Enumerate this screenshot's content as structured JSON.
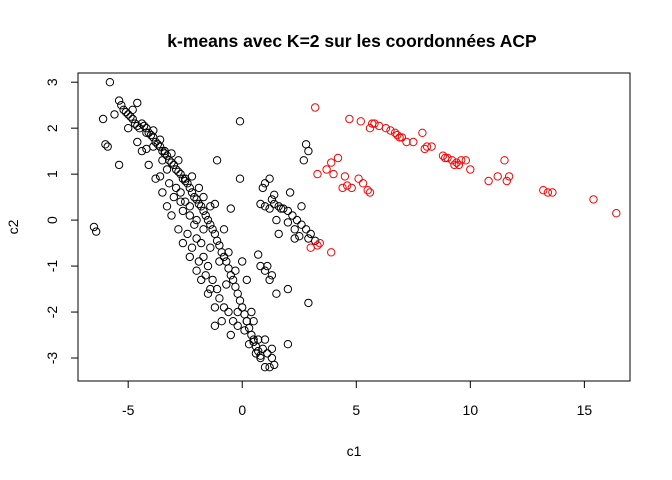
{
  "chart_data": {
    "type": "scatter",
    "title": "k-means avec K=2 sur les coordonnées ACP",
    "xlabel": "c1",
    "ylabel": "c2",
    "xlim": [
      -7.2,
      17.0
    ],
    "ylim": [
      -3.5,
      3.2
    ],
    "xticks": [
      "-5",
      "0",
      "5",
      "10",
      "15"
    ],
    "yticks": [
      "-3",
      "-2",
      "-1",
      "0",
      "1",
      "2",
      "3"
    ],
    "grid": false,
    "colors": {
      "cluster_1": "#000000",
      "cluster_2": "#ff0000"
    },
    "series": [
      {
        "color": "#000000",
        "points": [
          [
            -5.8,
            3.0
          ],
          [
            -5.4,
            2.6
          ],
          [
            -5.3,
            2.5
          ],
          [
            -5.2,
            2.4
          ],
          [
            -5.1,
            2.35
          ],
          [
            -5.0,
            2.3
          ],
          [
            -4.9,
            2.25
          ],
          [
            -4.8,
            2.2
          ],
          [
            -4.7,
            2.1
          ],
          [
            -4.6,
            2.05
          ],
          [
            -4.5,
            2.0
          ],
          [
            -4.6,
            2.55
          ],
          [
            -4.4,
            2.1
          ],
          [
            -4.3,
            2.05
          ],
          [
            -4.2,
            2.0
          ],
          [
            -4.1,
            1.9
          ],
          [
            -4.0,
            1.85
          ],
          [
            -3.9,
            1.8
          ],
          [
            -3.8,
            1.7
          ],
          [
            -3.7,
            1.65
          ],
          [
            -3.6,
            1.6
          ],
          [
            -3.5,
            1.5
          ],
          [
            -3.4,
            1.45
          ],
          [
            -3.3,
            1.4
          ],
          [
            -3.2,
            1.3
          ],
          [
            -3.1,
            1.25
          ],
          [
            -3.0,
            1.2
          ],
          [
            -2.9,
            1.1
          ],
          [
            -2.8,
            1.05
          ],
          [
            -2.7,
            1.0
          ],
          [
            -2.6,
            0.9
          ],
          [
            -2.5,
            0.85
          ],
          [
            -2.4,
            0.8
          ],
          [
            -2.3,
            0.7
          ],
          [
            -2.2,
            0.6
          ],
          [
            -2.1,
            0.5
          ],
          [
            -2.0,
            0.45
          ],
          [
            -1.9,
            0.35
          ],
          [
            -1.8,
            0.3
          ],
          [
            -1.7,
            0.2
          ],
          [
            -1.6,
            0.1
          ],
          [
            -1.5,
            0.0
          ],
          [
            -1.4,
            -0.1
          ],
          [
            -1.3,
            -0.2
          ],
          [
            -1.2,
            -0.3
          ],
          [
            -1.1,
            -0.45
          ],
          [
            -1.0,
            -0.55
          ],
          [
            -0.9,
            -0.7
          ],
          [
            -0.8,
            -0.8
          ],
          [
            -0.7,
            -0.9
          ],
          [
            -0.6,
            -1.05
          ],
          [
            -0.5,
            -1.2
          ],
          [
            -0.4,
            -1.3
          ],
          [
            -0.3,
            -1.45
          ],
          [
            -0.2,
            -1.6
          ],
          [
            -0.1,
            -1.75
          ],
          [
            0.0,
            -1.9
          ],
          [
            0.1,
            -2.05
          ],
          [
            0.2,
            -2.2
          ],
          [
            0.3,
            -2.35
          ],
          [
            0.4,
            -2.5
          ],
          [
            0.5,
            -2.6
          ],
          [
            0.6,
            -2.75
          ],
          [
            0.7,
            -2.85
          ],
          [
            0.8,
            -3.0
          ],
          [
            -4.6,
            1.7
          ],
          [
            -4.2,
            1.55
          ],
          [
            -3.9,
            1.6
          ],
          [
            -3.5,
            1.3
          ],
          [
            -3.3,
            1.1
          ],
          [
            -3.6,
            0.95
          ],
          [
            -3.2,
            0.8
          ],
          [
            -2.9,
            0.7
          ],
          [
            -3.0,
            0.5
          ],
          [
            -2.7,
            0.6
          ],
          [
            -2.5,
            0.4
          ],
          [
            -2.6,
            0.2
          ],
          [
            -2.3,
            0.1
          ],
          [
            -2.1,
            -0.1
          ],
          [
            -2.4,
            -0.3
          ],
          [
            -2.0,
            -0.4
          ],
          [
            -1.8,
            -0.5
          ],
          [
            -2.2,
            -0.6
          ],
          [
            -1.7,
            -0.8
          ],
          [
            -1.9,
            -0.9
          ],
          [
            -1.5,
            -1.0
          ],
          [
            -1.6,
            -1.2
          ],
          [
            -1.3,
            -1.3
          ],
          [
            -1.4,
            -1.5
          ],
          [
            -1.1,
            -1.5
          ],
          [
            -1.0,
            -1.7
          ],
          [
            -1.2,
            -1.9
          ],
          [
            -0.8,
            -1.9
          ],
          [
            -0.6,
            -2.0
          ],
          [
            -0.9,
            -2.2
          ],
          [
            -0.4,
            -2.2
          ],
          [
            -0.2,
            -2.3
          ],
          [
            -0.5,
            -2.5
          ],
          [
            0.1,
            -2.4
          ],
          [
            0.3,
            -2.7
          ],
          [
            -1.5,
            -1.6
          ],
          [
            -1.8,
            -1.3
          ],
          [
            -2.0,
            -1.1
          ],
          [
            -2.3,
            -0.8
          ],
          [
            -2.6,
            -0.5
          ],
          [
            -2.8,
            -0.2
          ],
          [
            -3.1,
            0.1
          ],
          [
            -3.3,
            0.3
          ],
          [
            -3.5,
            0.6
          ],
          [
            -3.8,
            0.9
          ],
          [
            -4.1,
            1.2
          ],
          [
            -4.4,
            1.5
          ],
          [
            -1.2,
            -2.3
          ],
          [
            -0.7,
            -1.4
          ],
          [
            -1.0,
            -0.9
          ],
          [
            -1.4,
            -0.6
          ],
          [
            -1.7,
            -0.2
          ],
          [
            -2.0,
            0.0
          ],
          [
            -2.3,
            0.3
          ],
          [
            -2.7,
            0.4
          ],
          [
            -6.5,
            -0.15
          ],
          [
            -6.4,
            -0.25
          ],
          [
            -5.9,
            1.6
          ],
          [
            -6.0,
            1.65
          ],
          [
            -6.1,
            2.2
          ],
          [
            -5.6,
            2.3
          ],
          [
            -5.4,
            1.2
          ],
          [
            -5.0,
            2.0
          ],
          [
            -4.8,
            2.4
          ],
          [
            -4.2,
            1.9
          ],
          [
            -3.9,
            1.95
          ],
          [
            -3.6,
            1.75
          ],
          [
            -3.4,
            1.5
          ],
          [
            -3.1,
            1.45
          ],
          [
            -2.8,
            1.3
          ],
          [
            -2.5,
            0.9
          ],
          [
            -2.2,
            0.95
          ],
          [
            -1.9,
            0.7
          ],
          [
            -1.7,
            0.5
          ],
          [
            -1.4,
            0.3
          ],
          [
            -1.1,
            1.3
          ],
          [
            -1.2,
            0.35
          ],
          [
            -0.8,
            -0.2
          ],
          [
            -0.6,
            -0.7
          ],
          [
            -0.3,
            -1.1
          ],
          [
            0.0,
            -0.9
          ],
          [
            0.2,
            -1.3
          ],
          [
            -0.2,
            -2.0
          ],
          [
            -0.5,
            0.25
          ],
          [
            -0.1,
            2.15
          ],
          [
            -0.1,
            0.9
          ],
          [
            0.7,
            -0.75
          ],
          [
            0.8,
            -1.0
          ],
          [
            1.0,
            -1.1
          ],
          [
            1.1,
            -1.0
          ],
          [
            1.3,
            -1.2
          ],
          [
            1.2,
            -1.3
          ],
          [
            2.0,
            -1.5
          ],
          [
            2.9,
            -1.8
          ],
          [
            1.5,
            -1.6
          ],
          [
            0.9,
            -2.8
          ],
          [
            1.1,
            -2.9
          ],
          [
            1.3,
            -3.0
          ],
          [
            1.0,
            -3.2
          ],
          [
            1.2,
            -3.2
          ],
          [
            1.4,
            -3.15
          ],
          [
            0.8,
            -2.95
          ],
          [
            0.6,
            -2.9
          ],
          [
            0.5,
            -2.65
          ],
          [
            0.7,
            -2.6
          ],
          [
            1.0,
            -2.6
          ],
          [
            1.3,
            -2.8
          ],
          [
            2.0,
            -2.7
          ],
          [
            0.2,
            -2.2
          ],
          [
            0.4,
            -2.0
          ],
          [
            0.5,
            -2.2
          ],
          [
            0.8,
            0.35
          ],
          [
            1.0,
            0.3
          ],
          [
            1.2,
            0.25
          ],
          [
            1.4,
            0.35
          ],
          [
            1.6,
            0.3
          ],
          [
            1.8,
            0.25
          ],
          [
            2.0,
            0.2
          ],
          [
            2.2,
            0.1
          ],
          [
            2.4,
            0.0
          ],
          [
            2.6,
            -0.1
          ],
          [
            2.8,
            -0.2
          ],
          [
            3.0,
            -0.3
          ],
          [
            3.2,
            -0.45
          ],
          [
            2.7,
            1.3
          ],
          [
            2.8,
            1.65
          ],
          [
            2.9,
            1.5
          ],
          [
            2.1,
            0.6
          ],
          [
            1.0,
            0.8
          ],
          [
            1.2,
            0.9
          ],
          [
            0.9,
            0.7
          ],
          [
            1.4,
            0.55
          ],
          [
            1.6,
            -0.3
          ],
          [
            1.5,
            0.0
          ],
          [
            2.0,
            -0.05
          ],
          [
            2.3,
            -0.2
          ],
          [
            2.5,
            -0.35
          ],
          [
            2.9,
            -0.4
          ],
          [
            2.3,
            -0.4
          ],
          [
            1.7,
            0.25
          ],
          [
            1.3,
            0.45
          ],
          [
            2.6,
            0.3
          ]
        ]
      },
      {
        "color": "#ff0000",
        "points": [
          [
            3.2,
            2.45
          ],
          [
            4.7,
            2.2
          ],
          [
            5.2,
            2.15
          ],
          [
            5.6,
            2.0
          ],
          [
            5.8,
            2.1
          ],
          [
            6.0,
            2.05
          ],
          [
            5.7,
            2.1
          ],
          [
            6.3,
            2.0
          ],
          [
            6.5,
            1.95
          ],
          [
            6.7,
            1.9
          ],
          [
            6.9,
            1.8
          ],
          [
            7.2,
            1.7
          ],
          [
            7.0,
            1.8
          ],
          [
            7.5,
            1.7
          ],
          [
            7.9,
            1.9
          ],
          [
            8.1,
            1.6
          ],
          [
            8.3,
            1.6
          ],
          [
            8.8,
            1.4
          ],
          [
            9.0,
            1.35
          ],
          [
            9.2,
            1.3
          ],
          [
            9.4,
            1.25
          ],
          [
            9.5,
            1.2
          ],
          [
            9.3,
            1.2
          ],
          [
            9.8,
            1.3
          ],
          [
            10.0,
            1.1
          ],
          [
            10.8,
            0.85
          ],
          [
            11.2,
            0.95
          ],
          [
            11.5,
            1.3
          ],
          [
            11.6,
            0.85
          ],
          [
            11.7,
            0.95
          ],
          [
            13.2,
            0.65
          ],
          [
            13.4,
            0.6
          ],
          [
            13.6,
            0.6
          ],
          [
            15.4,
            0.45
          ],
          [
            16.4,
            0.15
          ],
          [
            3.3,
            1.0
          ],
          [
            3.7,
            1.1
          ],
          [
            4.0,
            1.0
          ],
          [
            3.9,
            1.25
          ],
          [
            4.2,
            1.35
          ],
          [
            4.5,
            0.95
          ],
          [
            4.6,
            0.75
          ],
          [
            4.8,
            0.7
          ],
          [
            5.1,
            0.9
          ],
          [
            5.3,
            0.8
          ],
          [
            5.5,
            0.65
          ],
          [
            5.6,
            0.6
          ],
          [
            4.4,
            0.7
          ],
          [
            3.4,
            -0.5
          ],
          [
            3.9,
            -0.7
          ],
          [
            3.3,
            -0.55
          ],
          [
            3.0,
            -0.6
          ],
          [
            8.0,
            1.55
          ],
          [
            8.9,
            1.35
          ],
          [
            9.6,
            1.3
          ],
          [
            6.8,
            1.85
          ]
        ]
      }
    ]
  }
}
